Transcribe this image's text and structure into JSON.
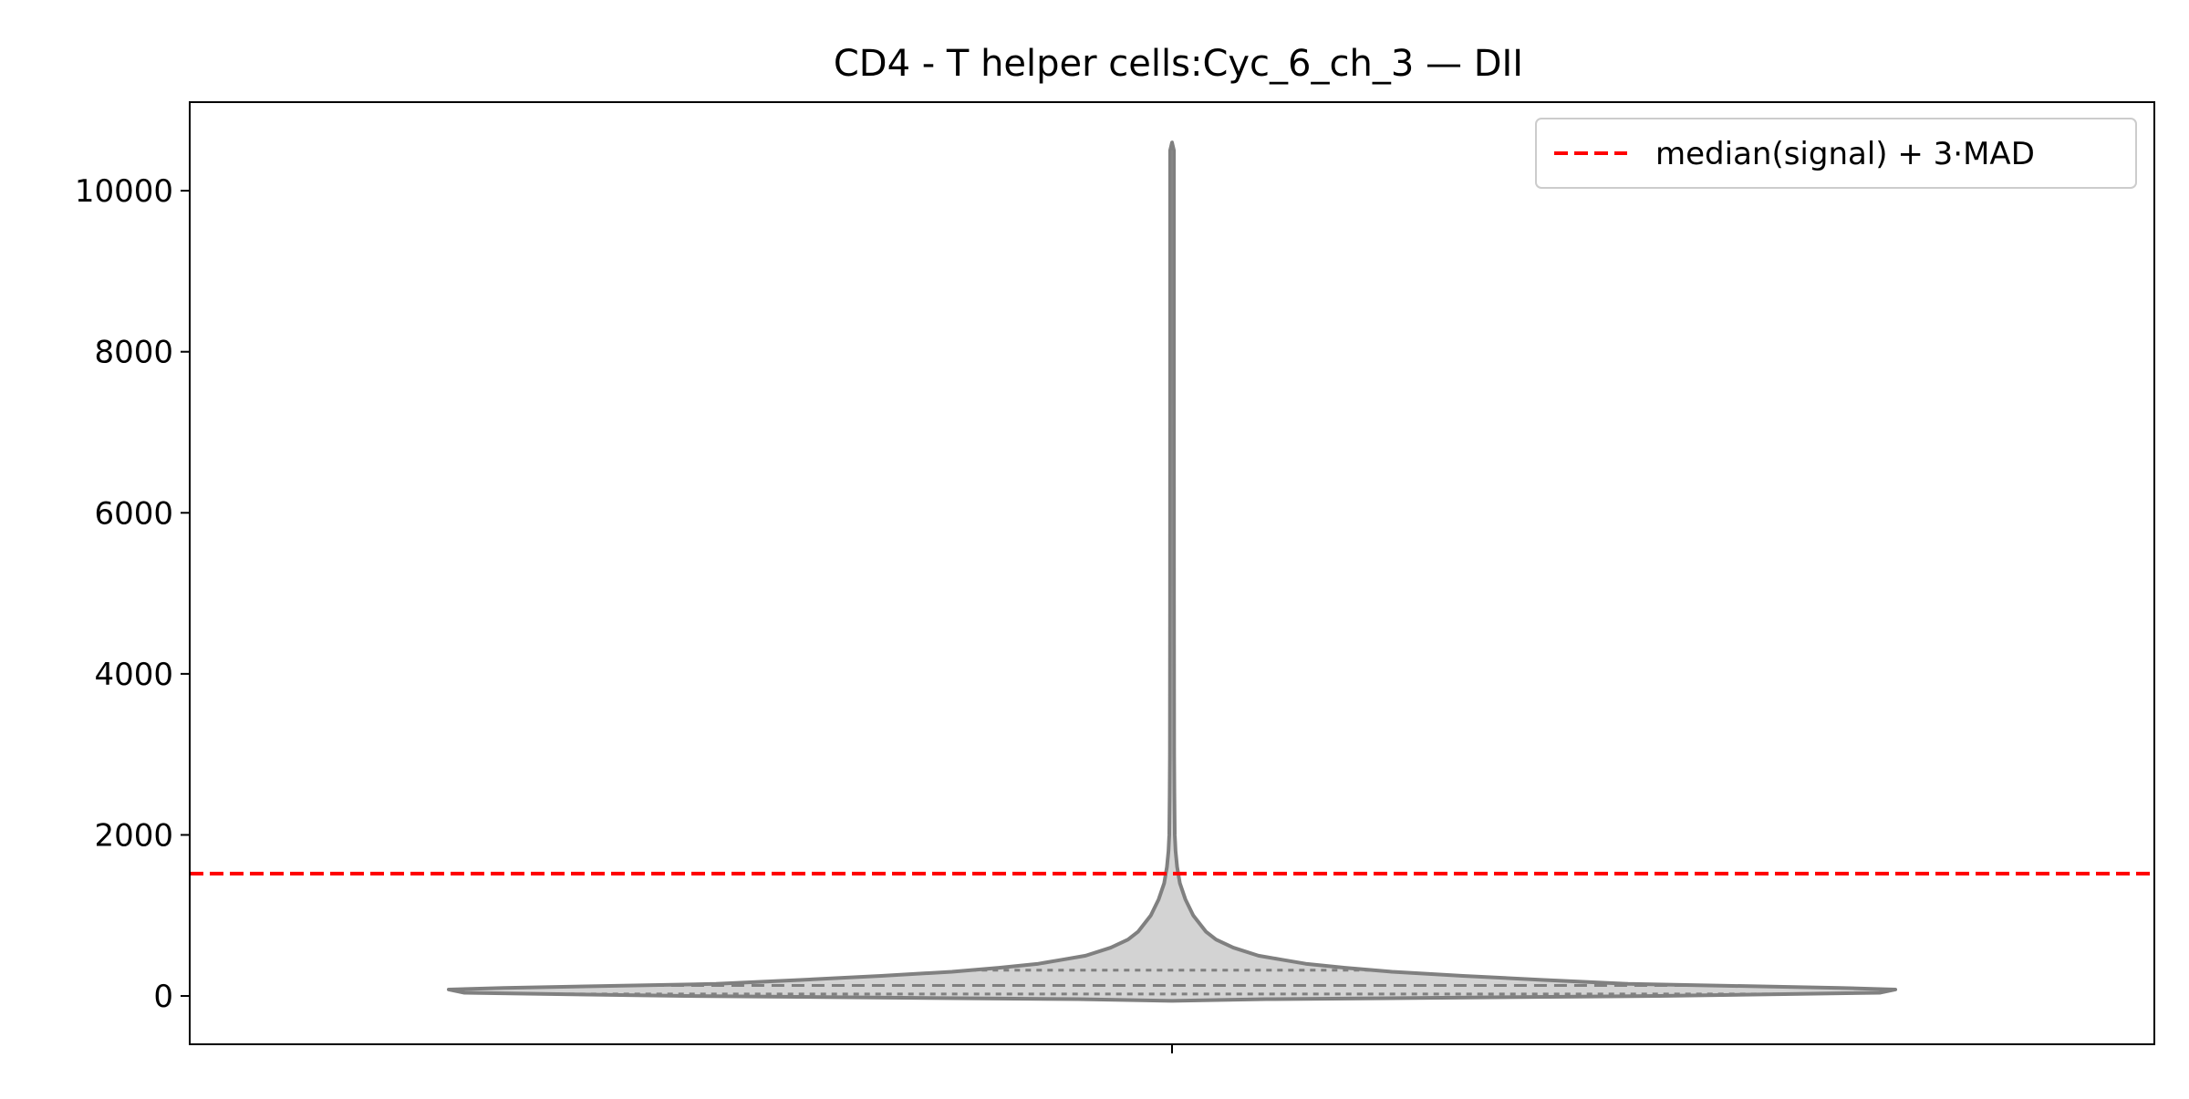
{
  "chart_data": {
    "type": "violin",
    "title": "CD4 - T helper cells:Cyc_6_ch_3 — DII",
    "xlabel": "",
    "ylabel": "",
    "ylim": [
      -600,
      11100
    ],
    "yticks": [
      0,
      2000,
      4000,
      6000,
      8000,
      10000
    ],
    "ytick_labels": [
      "0",
      "2000",
      "4000",
      "6000",
      "8000",
      "10000"
    ],
    "grid": false,
    "violin": {
      "min": -50,
      "max": 10600,
      "quartiles": {
        "q1": 25,
        "median": 130,
        "q3": 320
      },
      "profile": [
        {
          "y": -60,
          "w": 0.0
        },
        {
          "y": -40,
          "w": 0.12
        },
        {
          "y": 0,
          "w": 0.62
        },
        {
          "y": 40,
          "w": 0.9
        },
        {
          "y": 80,
          "w": 0.92
        },
        {
          "y": 100,
          "w": 0.85
        },
        {
          "y": 150,
          "w": 0.58
        },
        {
          "y": 200,
          "w": 0.47
        },
        {
          "y": 250,
          "w": 0.37
        },
        {
          "y": 300,
          "w": 0.28
        },
        {
          "y": 350,
          "w": 0.22
        },
        {
          "y": 400,
          "w": 0.17
        },
        {
          "y": 450,
          "w": 0.14
        },
        {
          "y": 500,
          "w": 0.11
        },
        {
          "y": 600,
          "w": 0.078
        },
        {
          "y": 700,
          "w": 0.056
        },
        {
          "y": 800,
          "w": 0.043
        },
        {
          "y": 1000,
          "w": 0.027
        },
        {
          "y": 1200,
          "w": 0.017
        },
        {
          "y": 1400,
          "w": 0.01
        },
        {
          "y": 1600,
          "w": 0.0065
        },
        {
          "y": 1800,
          "w": 0.0045
        },
        {
          "y": 2000,
          "w": 0.0035
        },
        {
          "y": 2500,
          "w": 0.003
        },
        {
          "y": 3000,
          "w": 0.0027
        },
        {
          "y": 5000,
          "w": 0.0025
        },
        {
          "y": 8000,
          "w": 0.0024
        },
        {
          "y": 10500,
          "w": 0.0024
        },
        {
          "y": 10600,
          "w": 0.0
        }
      ]
    },
    "threshold": {
      "value": 1520,
      "label": "median(signal) + 3·MAD",
      "color": "#ff0000",
      "style": "dashed"
    },
    "legend": {
      "placement": "top-right"
    },
    "colors": {
      "violin_fill": "#d3d3d3",
      "violin_edge": "#808080",
      "axes": "#000000"
    }
  }
}
